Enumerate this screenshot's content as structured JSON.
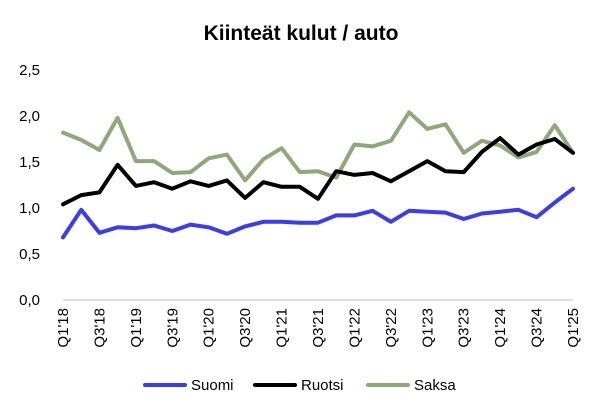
{
  "chart_data": {
    "type": "line",
    "title": "Kiinteät kulut / auto",
    "xlabel": "",
    "ylabel": "",
    "ylim": [
      0,
      2.5
    ],
    "yticks": [
      "0,0",
      "0,5",
      "1,0",
      "1,5",
      "2,0",
      "2,5"
    ],
    "grid": false,
    "legend_position": "bottom",
    "x": [
      "Q1'18",
      "Q2'18",
      "Q3'18",
      "Q4'18",
      "Q1'19",
      "Q2'19",
      "Q3'19",
      "Q4'19",
      "Q1'20",
      "Q2'20",
      "Q3'20",
      "Q4'20",
      "Q1'21",
      "Q2'21",
      "Q3'21",
      "Q4'21",
      "Q1'22",
      "Q2'22",
      "Q3'22",
      "Q4'22",
      "Q1'23",
      "Q2'23",
      "Q3'23",
      "Q4'23",
      "Q1'24",
      "Q2'24",
      "Q3'24",
      "Q4'24",
      "Q1'25"
    ],
    "xtick_labels": [
      "Q1'18",
      "Q3'18",
      "Q1'19",
      "Q3'19",
      "Q1'20",
      "Q3'20",
      "Q1'21",
      "Q3'21",
      "Q1'22",
      "Q3'22",
      "Q1'23",
      "Q3'23",
      "Q1'24",
      "Q3'24",
      "Q1'25"
    ],
    "series": [
      {
        "name": "Suomi",
        "color": "#3a3cf0",
        "values": [
          0.68,
          0.98,
          0.73,
          0.79,
          0.78,
          0.81,
          0.75,
          0.82,
          0.79,
          0.72,
          0.8,
          0.85,
          0.85,
          0.84,
          0.84,
          0.92,
          0.92,
          0.97,
          0.85,
          0.97,
          0.96,
          0.95,
          0.88,
          0.94,
          0.96,
          0.98,
          0.9,
          1.06,
          1.21
        ]
      },
      {
        "name": "Ruotsi",
        "color": "#000000",
        "values": [
          1.04,
          1.14,
          1.17,
          1.47,
          1.24,
          1.28,
          1.21,
          1.29,
          1.24,
          1.3,
          1.11,
          1.28,
          1.23,
          1.23,
          1.1,
          1.4,
          1.36,
          1.38,
          1.29,
          1.4,
          1.51,
          1.4,
          1.39,
          1.61,
          1.76,
          1.58,
          1.69,
          1.75,
          1.6
        ]
      },
      {
        "name": "Saksa",
        "color": "#8ea87a",
        "values": [
          1.82,
          1.74,
          1.63,
          1.98,
          1.51,
          1.51,
          1.38,
          1.39,
          1.54,
          1.58,
          1.3,
          1.53,
          1.65,
          1.39,
          1.4,
          1.33,
          1.69,
          1.67,
          1.73,
          2.04,
          1.86,
          1.91,
          1.6,
          1.73,
          1.68,
          1.55,
          1.61,
          1.9,
          1.6
        ]
      }
    ]
  }
}
